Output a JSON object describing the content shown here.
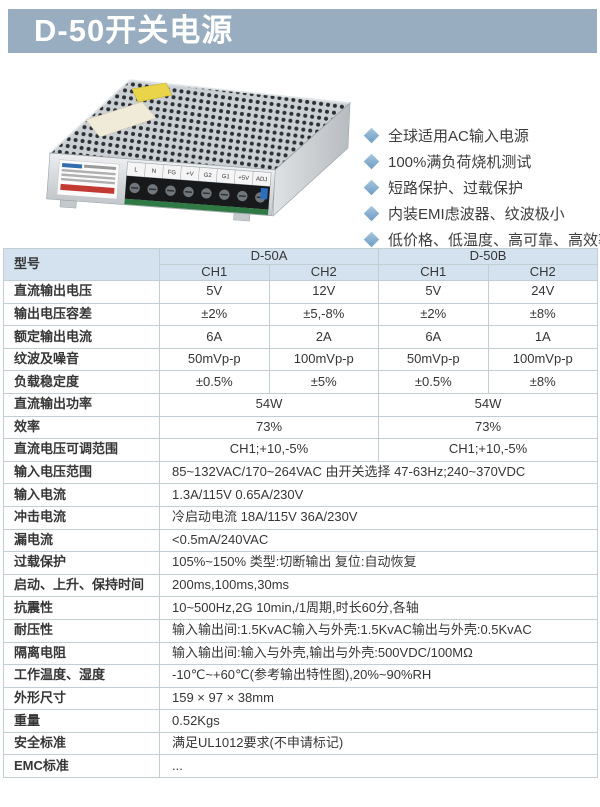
{
  "colors": {
    "banner_bg": "#98adbf",
    "header_bg": "#d3e2ee",
    "diamond_a": "#a9c6dd",
    "diamond_b": "#6d9cc3"
  },
  "banner": {
    "title": "D-50开关电源"
  },
  "features": [
    "全球适用AC输入电源",
    "100%满负荷烧机测试",
    "短路保护、过载保护",
    "内装EMI虑波器、纹波极小",
    "低价格、低温度、高可靠、高效率"
  ],
  "product_image": {
    "description": "D-50 metal-cased switching power supply photo",
    "terminal_labels": [
      "L",
      "N",
      "FG",
      "+V",
      "G2",
      "G1",
      "+5V",
      "ADJ"
    ],
    "terminal_sub_label": "(AC)"
  },
  "table": {
    "header": {
      "model": "型号",
      "groups": [
        {
          "name": "D-50A",
          "channels": [
            "CH1",
            "CH2"
          ]
        },
        {
          "name": "D-50B",
          "channels": [
            "CH1",
            "CH2"
          ]
        }
      ]
    },
    "rows": [
      {
        "label": "直流输出电压",
        "values": [
          "5V",
          "12V",
          "5V",
          "24V"
        ]
      },
      {
        "label": "输出电压容差",
        "values": [
          "±2%",
          "±5,-8%",
          "±2%",
          "±8%"
        ]
      },
      {
        "label": "额定输出电流",
        "values": [
          "6A",
          "2A",
          "6A",
          "1A"
        ]
      },
      {
        "label": "纹波及噪音",
        "values": [
          "50mVp-p",
          "100mVp-p",
          "50mVp-p",
          "100mVp-p"
        ]
      },
      {
        "label": "负载稳定度",
        "values": [
          "±0.5%",
          "±5%",
          "±0.5%",
          "±8%"
        ]
      },
      {
        "label": "直流输出功率",
        "values": [
          "54W",
          "54W"
        ]
      },
      {
        "label": "效率",
        "values": [
          "73%",
          "73%"
        ]
      },
      {
        "label": "直流电压可调范围",
        "values": [
          "CH1;+10,-5%",
          "CH1;+10,-5%"
        ]
      },
      {
        "label": "输入电压范围",
        "values": [
          "85~132VAC/170~264VAC 由开关选择 47-63Hz;240~370VDC"
        ]
      },
      {
        "label": "输入电流",
        "values": [
          "1.3A/115V 0.65A/230V"
        ]
      },
      {
        "label": "冲击电流",
        "values": [
          "冷启动电流 18A/115V 36A/230V"
        ]
      },
      {
        "label": "漏电流",
        "values": [
          "<0.5mA/240VAC"
        ]
      },
      {
        "label": "过载保护",
        "values": [
          "105%~150% 类型:切断输出 复位:自动恢复"
        ]
      },
      {
        "label": "启动、上升、保持时间",
        "values": [
          "200ms,100ms,30ms"
        ]
      },
      {
        "label": "抗震性",
        "values": [
          "10~500Hz,2G 10min,/1周期,时长60分,各轴"
        ]
      },
      {
        "label": "耐压性",
        "values": [
          "输入输出间:1.5KvAC输入与外壳:1.5KvAC输出与外壳:0.5KvAC"
        ]
      },
      {
        "label": "隔离电阻",
        "values": [
          "输入输出间:输入与外壳,输出与外壳:500VDC/100MΩ"
        ]
      },
      {
        "label": "工作温度、湿度",
        "values": [
          "-10℃~+60℃(参考输出特性图),20%~90%RH"
        ]
      },
      {
        "label": "外形尺寸",
        "values": [
          "159 × 97 × 38mm"
        ]
      },
      {
        "label": "重量",
        "values": [
          "0.52Kgs"
        ]
      },
      {
        "label": "安全标准",
        "values": [
          "满足UL1012要求(不申请标记)"
        ]
      },
      {
        "label": "EMC标准",
        "values": [
          "..."
        ]
      }
    ]
  }
}
